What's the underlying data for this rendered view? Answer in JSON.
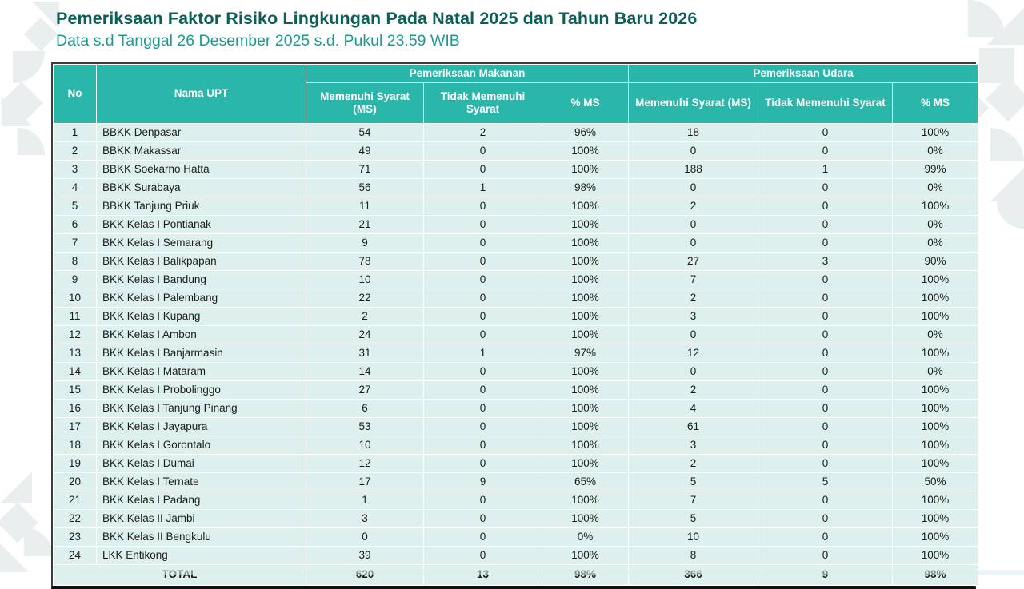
{
  "header": {
    "title": "Pemeriksaan Faktor Risiko Lingkungan Pada Natal 2025 dan Tahun Baru 2026",
    "subtitle": "Data s.d Tanggal 26 Desember 2025 s.d. Pukul 23.59 WIB"
  },
  "table": {
    "groups": {
      "makanan": "Pemeriksaan Makanan",
      "udara": "Pemeriksaan Udara"
    },
    "columns": {
      "no": "No",
      "nama_upt": "Nama UPT",
      "ms": "Memenuhi Syarat (MS)",
      "tms": "Tidak Memenuhi Syarat",
      "pct_ms": "% MS"
    },
    "rows": [
      [
        "1",
        "BBKK Denpasar",
        "54",
        "2",
        "96%",
        "18",
        "0",
        "100%"
      ],
      [
        "2",
        "BBKK Makassar",
        "49",
        "0",
        "100%",
        "0",
        "0",
        "0%"
      ],
      [
        "3",
        "BBKK Soekarno Hatta",
        "71",
        "0",
        "100%",
        "188",
        "1",
        "99%"
      ],
      [
        "4",
        "BBKK Surabaya",
        "56",
        "1",
        "98%",
        "0",
        "0",
        "0%"
      ],
      [
        "5",
        "BBKK Tanjung Priuk",
        "11",
        "0",
        "100%",
        "2",
        "0",
        "100%"
      ],
      [
        "6",
        "BKK Kelas I Pontianak",
        "21",
        "0",
        "100%",
        "0",
        "0",
        "0%"
      ],
      [
        "7",
        "BKK Kelas I Semarang",
        "9",
        "0",
        "100%",
        "0",
        "0",
        "0%"
      ],
      [
        "8",
        "BKK Kelas I Balikpapan",
        "78",
        "0",
        "100%",
        "27",
        "3",
        "90%"
      ],
      [
        "9",
        "BKK Kelas I Bandung",
        "10",
        "0",
        "100%",
        "7",
        "0",
        "100%"
      ],
      [
        "10",
        "BKK Kelas I Palembang",
        "22",
        "0",
        "100%",
        "2",
        "0",
        "100%"
      ],
      [
        "11",
        "BKK Kelas I Kupang",
        "2",
        "0",
        "100%",
        "3",
        "0",
        "100%"
      ],
      [
        "12",
        "BKK Kelas I Ambon",
        "24",
        "0",
        "100%",
        "0",
        "0",
        "0%"
      ],
      [
        "13",
        "BKK Kelas I Banjarmasin",
        "31",
        "1",
        "97%",
        "12",
        "0",
        "100%"
      ],
      [
        "14",
        "BKK Kelas I Mataram",
        "14",
        "0",
        "100%",
        "0",
        "0",
        "0%"
      ],
      [
        "15",
        "BKK Kelas I Probolinggo",
        "27",
        "0",
        "100%",
        "2",
        "0",
        "100%"
      ],
      [
        "16",
        "BKK Kelas I Tanjung Pinang",
        "6",
        "0",
        "100%",
        "4",
        "0",
        "100%"
      ],
      [
        "17",
        "BKK Kelas I Jayapura",
        "53",
        "0",
        "100%",
        "61",
        "0",
        "100%"
      ],
      [
        "18",
        "BKK Kelas I Gorontalo",
        "10",
        "0",
        "100%",
        "3",
        "0",
        "100%"
      ],
      [
        "19",
        "BKK Kelas I Dumai",
        "12",
        "0",
        "100%",
        "2",
        "0",
        "100%"
      ],
      [
        "20",
        "BKK Kelas I Ternate",
        "17",
        "9",
        "65%",
        "5",
        "5",
        "50%"
      ],
      [
        "21",
        "BKK Kelas I Padang",
        "1",
        "0",
        "100%",
        "7",
        "0",
        "100%"
      ],
      [
        "22",
        "BKK  Kelas II Jambi",
        "3",
        "0",
        "100%",
        "5",
        "0",
        "100%"
      ],
      [
        "23",
        "BKK Kelas II Bengkulu",
        "0",
        "0",
        "0%",
        "10",
        "0",
        "100%"
      ],
      [
        "24",
        "LKK Entikong",
        "39",
        "0",
        "100%",
        "8",
        "0",
        "100%"
      ]
    ],
    "total": {
      "label": "TOTAL",
      "values": [
        "620",
        "13",
        "98%",
        "366",
        "9",
        "98%"
      ]
    }
  },
  "colors": {
    "header_teal": "#2ab6a9",
    "row_bg": "#ddf0ee",
    "title_dark_teal": "#0a5f59",
    "subtitle_teal": "#1f9a91",
    "pattern_gray": "#e9efee"
  }
}
